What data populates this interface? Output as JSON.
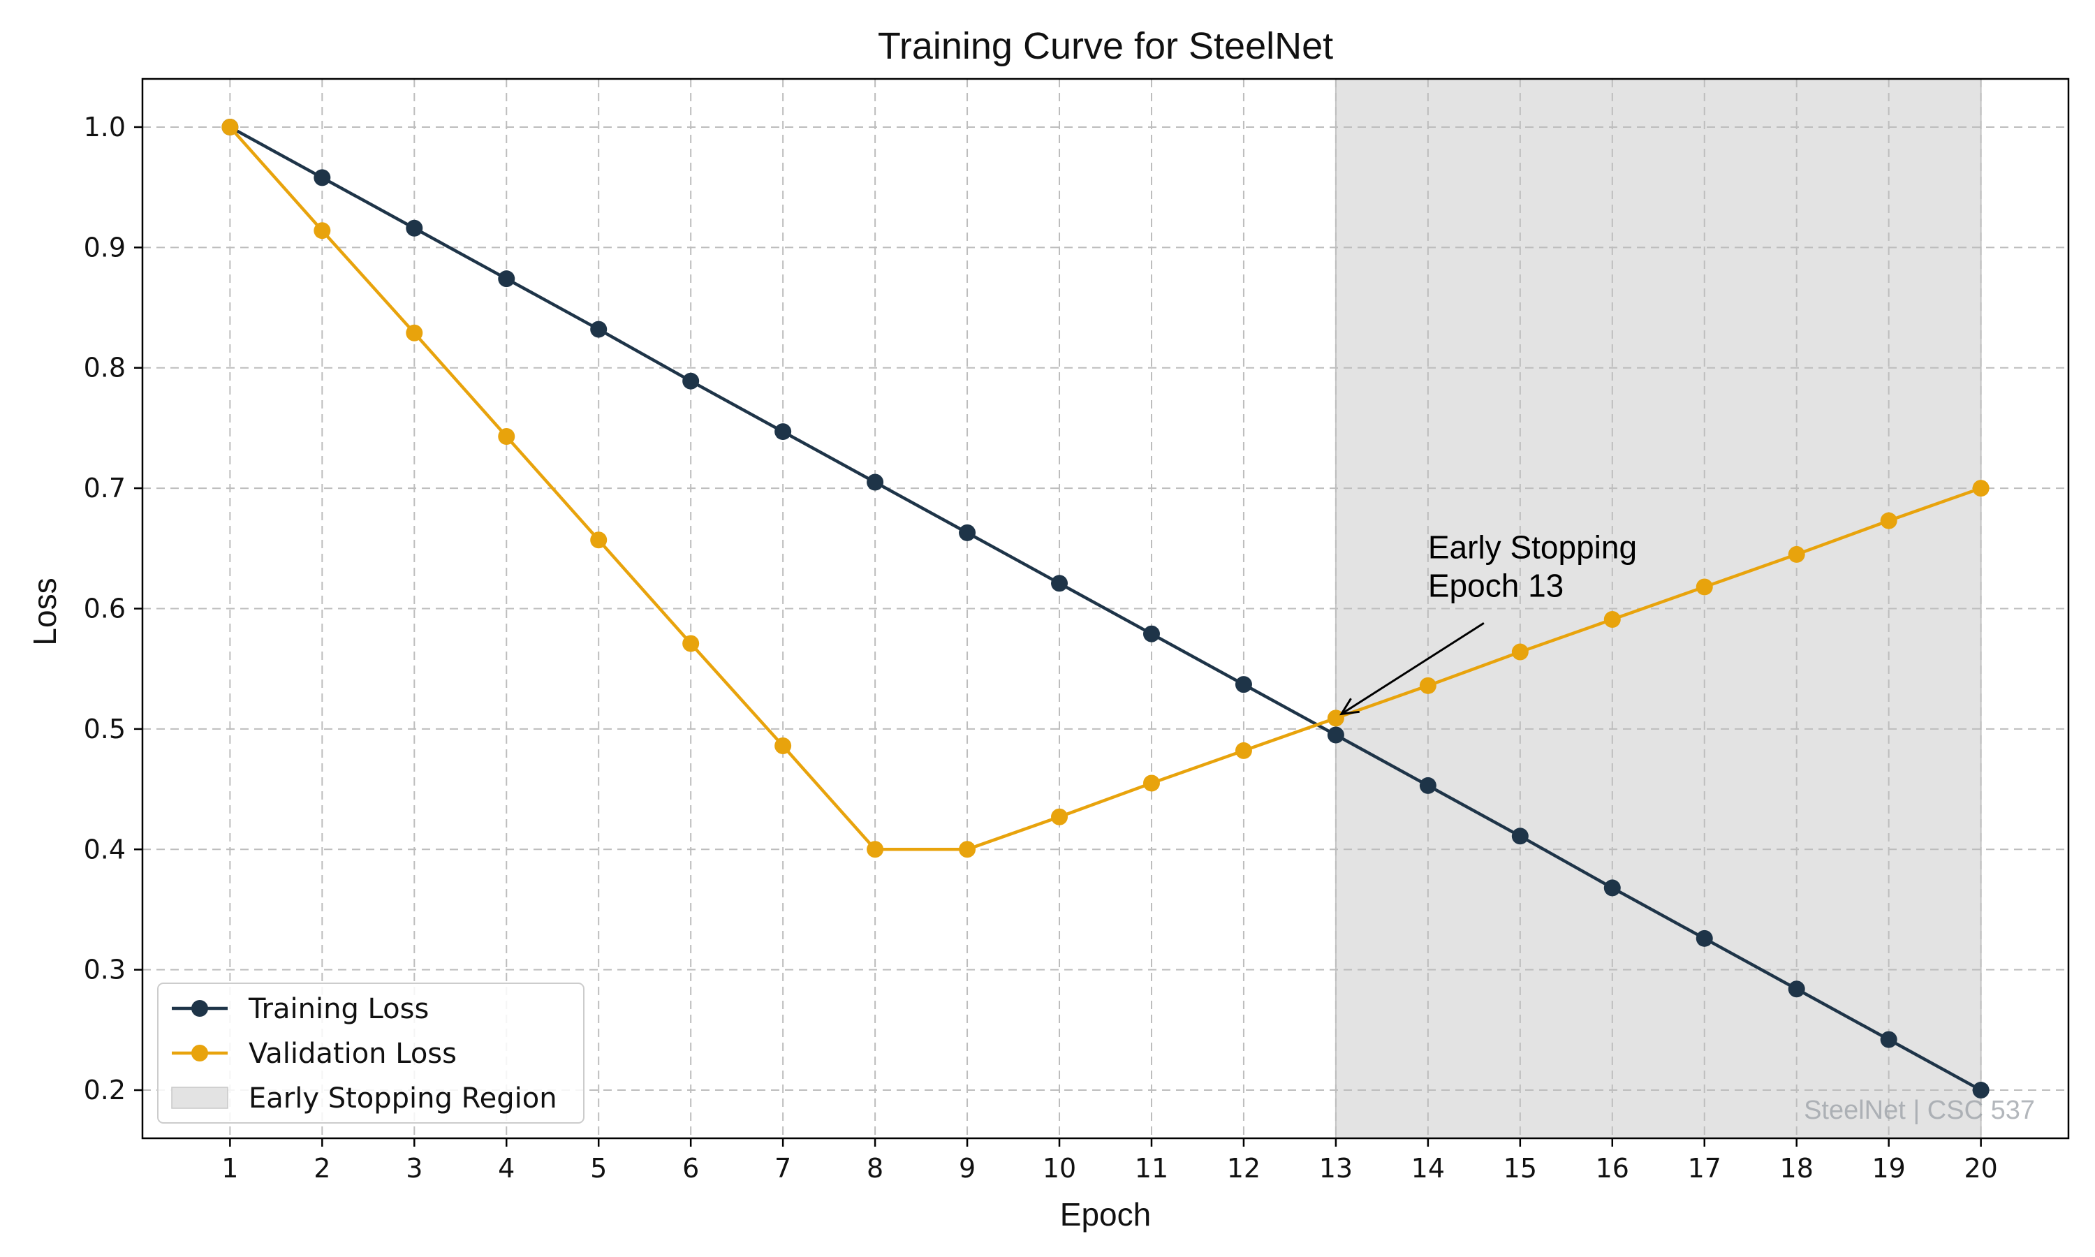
{
  "chart_data": {
    "type": "line",
    "title": "Training Curve for SteelNet",
    "xlabel": "Epoch",
    "ylabel": "Loss",
    "x": [
      1,
      2,
      3,
      4,
      5,
      6,
      7,
      8,
      9,
      10,
      11,
      12,
      13,
      14,
      15,
      16,
      17,
      18,
      19,
      20
    ],
    "xlim": [
      0.05,
      20.95
    ],
    "ylim": [
      0.16,
      1.04
    ],
    "yticks": [
      0.2,
      0.3,
      0.4,
      0.5,
      0.6,
      0.7,
      0.8,
      0.9,
      1.0
    ],
    "ytick_labels": [
      "0.2",
      "0.3",
      "0.4",
      "0.5",
      "0.6",
      "0.7",
      "0.8",
      "0.9",
      "1.0"
    ],
    "xtick_labels": [
      "1",
      "2",
      "3",
      "4",
      "5",
      "6",
      "7",
      "8",
      "9",
      "10",
      "11",
      "12",
      "13",
      "14",
      "15",
      "16",
      "17",
      "18",
      "19",
      "20"
    ],
    "grid": true,
    "series": [
      {
        "name": "Training Loss",
        "color": "#1e3448",
        "values": [
          1.0,
          0.958,
          0.916,
          0.874,
          0.832,
          0.789,
          0.747,
          0.705,
          0.663,
          0.621,
          0.579,
          0.537,
          0.495,
          0.453,
          0.411,
          0.368,
          0.326,
          0.284,
          0.242,
          0.2
        ]
      },
      {
        "name": "Validation Loss",
        "color": "#e8a30c",
        "values": [
          1.0,
          0.914,
          0.829,
          0.743,
          0.657,
          0.571,
          0.486,
          0.4,
          0.4,
          0.427,
          0.455,
          0.482,
          0.509,
          0.536,
          0.564,
          0.591,
          0.618,
          0.645,
          0.673,
          0.7
        ]
      }
    ],
    "shaded_region": {
      "name": "Early Stopping Region",
      "x_start": 13,
      "x_end": 20,
      "color": "#e3e3e3"
    },
    "annotation": {
      "lines": [
        "Early Stopping",
        "Epoch 13"
      ],
      "text_x": 14,
      "text_y": 0.61,
      "arrow_to_x": 13,
      "arrow_to_y": 0.509
    },
    "legend_placement": "lower-left",
    "watermark": "SteelNet | CSC 537"
  }
}
